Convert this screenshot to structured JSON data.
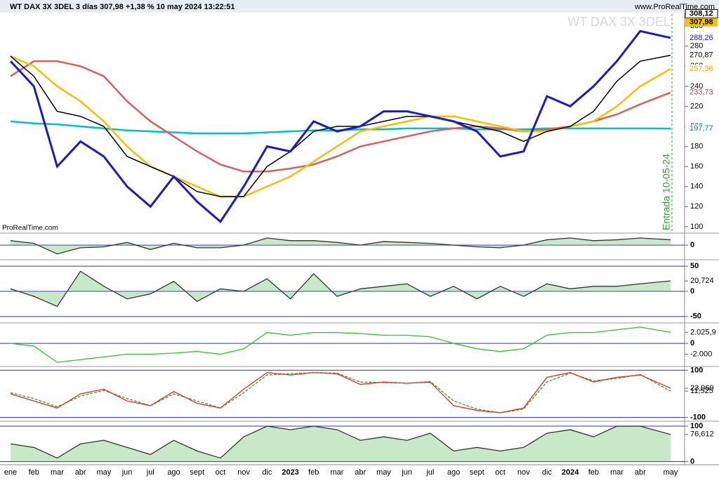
{
  "header": {
    "title": "WT DAX 3X 3DEL 3 días 307,98 +1,38 % 10 may 2024 13:22:51",
    "site": "www.ProRealTime.com"
  },
  "chart_data": [
    {
      "type": "line",
      "watermark": "WT DAX 3X 3DEL",
      "source": "ProRealTime.com",
      "annotation": "Entrada 10-05-24",
      "categories": [
        "ene",
        "feb",
        "mar",
        "abr",
        "may",
        "jun",
        "jul",
        "ago",
        "sept",
        "oct",
        "nov",
        "dic",
        "2023",
        "feb",
        "mar",
        "abr",
        "may",
        "jun",
        "jul",
        "ago",
        "sept",
        "oct",
        "nov",
        "dic",
        "2024",
        "feb",
        "mar",
        "abr",
        "may"
      ],
      "ylim": [
        95,
        312
      ],
      "yticks": [
        100,
        120,
        140,
        160,
        180,
        200,
        220,
        240,
        260,
        280,
        300
      ],
      "series": [
        {
          "color": "#00c0c8",
          "width": 2.5,
          "values": [
            205,
            203,
            202,
            200,
            198,
            196,
            195,
            194,
            193,
            193,
            193,
            194,
            195,
            196,
            196,
            197,
            197,
            198,
            198,
            198,
            197,
            197,
            197,
            198,
            198,
            198,
            198,
            198,
            197.77
          ]
        },
        {
          "color": "#d86060",
          "width": 2.5,
          "values": [
            250,
            265,
            265,
            260,
            250,
            225,
            205,
            190,
            175,
            162,
            155,
            155,
            158,
            162,
            170,
            180,
            185,
            190,
            195,
            198,
            200,
            198,
            195,
            197,
            200,
            205,
            212,
            222,
            233.73
          ]
        },
        {
          "color": "#f5c000",
          "width": 2.5,
          "values": [
            270,
            260,
            240,
            225,
            205,
            180,
            160,
            150,
            140,
            130,
            130,
            140,
            150,
            165,
            180,
            195,
            200,
            205,
            210,
            210,
            205,
            200,
            195,
            195,
            200,
            205,
            220,
            240,
            257.36
          ]
        },
        {
          "color": "#000000",
          "width": 1.5,
          "values": [
            270,
            250,
            215,
            210,
            200,
            170,
            160,
            150,
            135,
            130,
            130,
            160,
            175,
            195,
            200,
            200,
            205,
            210,
            210,
            205,
            200,
            195,
            185,
            195,
            200,
            215,
            245,
            265,
            270.87
          ]
        },
        {
          "color": "#1a1acc",
          "width": 3,
          "values": [
            265,
            240,
            160,
            185,
            170,
            140,
            120,
            150,
            125,
            105,
            140,
            180,
            175,
            205,
            195,
            200,
            215,
            215,
            210,
            205,
            195,
            170,
            175,
            230,
            220,
            240,
            265,
            295,
            288.26
          ]
        }
      ],
      "price_labels": [
        {
          "value": 308.12,
          "label": "308,12",
          "color": "#000000",
          "bg": "#ffffff"
        },
        {
          "value": 307.98,
          "label": "307,98",
          "color": "#000000",
          "bg": "#f5c000"
        },
        {
          "value": 288.26,
          "label": "288,26",
          "color": "#1a1acc",
          "bg": "#ffffff"
        },
        {
          "value": 270.87,
          "label": "270,87",
          "color": "#000000",
          "bg": "#ffffff"
        },
        {
          "value": 257.36,
          "label": "257,36",
          "color": "#e0a800",
          "bg": "#ffffff"
        },
        {
          "value": 233.73,
          "label": "233,73",
          "color": "#c04040",
          "bg": "#ffffff"
        },
        {
          "value": 197.77,
          "label": "197,77",
          "color": "#008890",
          "bg": "#ffffff"
        }
      ]
    },
    {
      "type": "area",
      "ylim": [
        -15,
        12
      ],
      "yticks": [
        0
      ],
      "series": [
        {
          "color": "#60c060",
          "values": [
            5,
            2,
            -10,
            -3,
            -2,
            3,
            -5,
            2,
            -3,
            -3,
            0,
            8,
            5,
            5,
            3,
            0,
            4,
            3,
            2,
            0,
            -2,
            -3,
            0,
            6,
            8,
            5,
            6,
            8,
            6
          ]
        }
      ]
    },
    {
      "type": "area",
      "ylim": [
        -60,
        60
      ],
      "yticks": [
        50,
        {
          "value": 20.724,
          "label": "20,724"
        },
        0,
        -50
      ],
      "series": [
        {
          "color": "#60c060",
          "values": [
            5,
            -10,
            -30,
            40,
            10,
            -15,
            -5,
            20,
            -20,
            5,
            0,
            25,
            -15,
            35,
            -10,
            5,
            10,
            15,
            -10,
            10,
            -15,
            10,
            -10,
            15,
            5,
            10,
            10,
            15,
            20.724
          ]
        }
      ]
    },
    {
      "type": "line",
      "ylim": [
        -4000,
        3500
      ],
      "yticks": [
        {
          "value": 2025.9,
          "label": "2.025,9"
        },
        0,
        {
          "value": -2000,
          "label": "-2.000"
        }
      ],
      "series": [
        {
          "color": "#30c030",
          "values": [
            0,
            -500,
            -3500,
            -3000,
            -2500,
            -2000,
            -2000,
            -1800,
            -1500,
            -2000,
            -1000,
            2000,
            1500,
            2000,
            2000,
            1800,
            1500,
            1500,
            1200,
            0,
            -1000,
            -1500,
            -1000,
            1500,
            2000,
            2000,
            2500,
            3000,
            2025.9
          ]
        }
      ]
    },
    {
      "type": "line",
      "ylim": [
        -110,
        110
      ],
      "yticks": [
        100,
        {
          "value": 23.969,
          "label": "23,969"
        },
        {
          "value": 11.525,
          "label": "11,525"
        },
        -100
      ],
      "series": [
        {
          "color": "#30a030",
          "dash": true,
          "values": [
            5,
            -20,
            -55,
            -10,
            15,
            -20,
            -50,
            0,
            -30,
            -60,
            5,
            80,
            85,
            90,
            88,
            50,
            48,
            45,
            52,
            -30,
            -65,
            -80,
            -65,
            50,
            88,
            55,
            65,
            82,
            11.525
          ]
        },
        {
          "color": "#e03020",
          "values": [
            0,
            -30,
            -60,
            0,
            20,
            -30,
            -50,
            10,
            -40,
            -60,
            20,
            90,
            80,
            90,
            85,
            40,
            50,
            45,
            50,
            -50,
            -70,
            -80,
            -60,
            70,
            90,
            50,
            70,
            80,
            23.969
          ]
        }
      ]
    },
    {
      "type": "area",
      "ylim": [
        -5,
        110
      ],
      "yticks": [
        100,
        {
          "value": 76.612,
          "label": "76,612"
        },
        0
      ],
      "series": [
        {
          "color": "#60c060",
          "values": [
            50,
            40,
            10,
            50,
            60,
            40,
            20,
            60,
            30,
            10,
            70,
            100,
            90,
            100,
            90,
            60,
            70,
            60,
            80,
            30,
            40,
            30,
            40,
            80,
            90,
            70,
            100,
            100,
            76.612
          ]
        }
      ]
    }
  ]
}
